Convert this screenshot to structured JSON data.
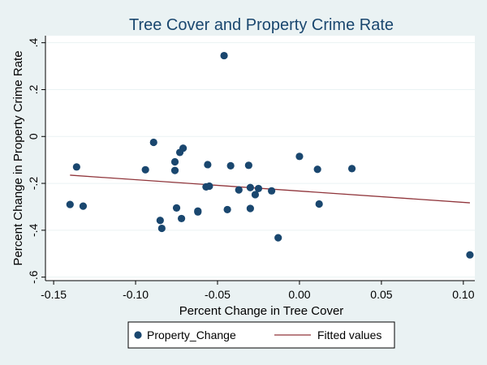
{
  "chart_data": {
    "type": "scatter",
    "title": "Tree Cover and Property Crime Rate",
    "xlabel": "Percent Change in Tree Cover",
    "ylabel": "Percent Change in Property Crime Rate",
    "xlim": [
      -0.155,
      0.107
    ],
    "ylim": [
      -0.615,
      0.43
    ],
    "xticks": [
      -0.15,
      -0.1,
      -0.05,
      0.0,
      0.05,
      0.1
    ],
    "xtick_labels": [
      "-0.15",
      "-0.10",
      "-0.05",
      "0.00",
      "0.05",
      "0.10"
    ],
    "yticks": [
      -0.6,
      -0.4,
      -0.2,
      0,
      0.2,
      0.4
    ],
    "ytick_labels": [
      "-.6",
      "-.4",
      "-.2",
      "0",
      ".2",
      ".4"
    ],
    "grid": true,
    "legend": {
      "position": "bottom",
      "entries": [
        "Property_Change",
        "Fitted values"
      ]
    },
    "colors": {
      "background": "#eaf2f3",
      "plot_background": "#ffffff",
      "grid": "#eaf2f3",
      "title": "#1a476f",
      "points": "#1a476f",
      "fit_line": "#90353b",
      "axis": "#000000"
    },
    "series": [
      {
        "name": "Property_Change",
        "kind": "scatter",
        "points": [
          [
            -0.14,
            -0.29
          ],
          [
            -0.136,
            -0.13
          ],
          [
            -0.132,
            -0.297
          ],
          [
            -0.094,
            -0.142
          ],
          [
            -0.089,
            -0.025
          ],
          [
            -0.085,
            -0.358
          ],
          [
            -0.084,
            -0.392
          ],
          [
            -0.076,
            -0.108
          ],
          [
            -0.076,
            -0.145
          ],
          [
            -0.075,
            -0.305
          ],
          [
            -0.073,
            -0.068
          ],
          [
            -0.072,
            -0.35
          ],
          [
            -0.071,
            -0.05
          ],
          [
            -0.062,
            -0.322
          ],
          [
            -0.062,
            -0.318
          ],
          [
            -0.057,
            -0.215
          ],
          [
            -0.056,
            -0.12
          ],
          [
            -0.055,
            -0.212
          ],
          [
            -0.046,
            0.345
          ],
          [
            -0.044,
            -0.312
          ],
          [
            -0.042,
            -0.125
          ],
          [
            -0.037,
            -0.228
          ],
          [
            -0.031,
            -0.123
          ],
          [
            -0.03,
            -0.218
          ],
          [
            -0.03,
            -0.307
          ],
          [
            -0.027,
            -0.248
          ],
          [
            -0.025,
            -0.222
          ],
          [
            -0.017,
            -0.232
          ],
          [
            -0.013,
            -0.432
          ],
          [
            0.0,
            -0.085
          ],
          [
            0.011,
            -0.14
          ],
          [
            0.012,
            -0.288
          ],
          [
            0.032,
            -0.137
          ],
          [
            0.104,
            -0.505
          ]
        ]
      },
      {
        "name": "Fitted values",
        "kind": "line",
        "points": [
          [
            -0.14,
            -0.165
          ],
          [
            0.104,
            -0.283
          ]
        ]
      }
    ]
  }
}
